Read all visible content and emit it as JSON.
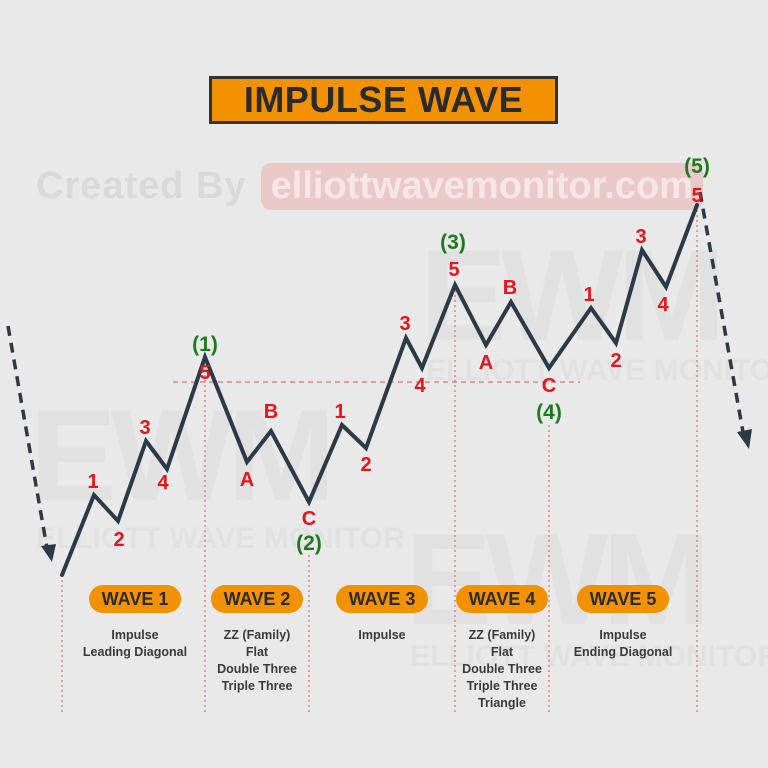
{
  "title": "IMPULSE WAVE",
  "watermark": {
    "credit_prefix": "Created By",
    "credit_site": "elliottwavemonitor.com",
    "logo_text": "EWM",
    "logo_sub": "ELLIOTT WAVE MONITOR"
  },
  "colors": {
    "accent": "#f39200",
    "wave_line": "#2b3a48",
    "sub_label": "#e8141c",
    "degree_label": "#1d7a1d",
    "guide": "#e05050"
  },
  "degree_labels": {
    "w1": "(1)",
    "w2": "(2)",
    "w3": "(3)",
    "w4": "(4)",
    "w5": "(5)"
  },
  "sub_labels": {
    "w1_1": "1",
    "w1_2": "2",
    "w1_3": "3",
    "w1_4": "4",
    "w1_5": "5",
    "w2_a": "A",
    "w2_b": "B",
    "w2_c": "C",
    "w3_1": "1",
    "w3_2": "2",
    "w3_3": "3",
    "w3_4": "4",
    "w3_5": "5",
    "w4_a": "A",
    "w4_b": "B",
    "w4_c": "C",
    "w5_1": "1",
    "w5_2": "2",
    "w5_3": "3",
    "w5_4": "4",
    "w5_5": "5"
  },
  "waves": [
    {
      "label": "WAVE 1",
      "lines": [
        "Impulse",
        "Leading Diagonal"
      ]
    },
    {
      "label": "WAVE 2",
      "lines": [
        "ZZ (Family)",
        "Flat",
        "Double Three",
        "Triple Three"
      ]
    },
    {
      "label": "WAVE 3",
      "lines": [
        "Impulse"
      ]
    },
    {
      "label": "WAVE 4",
      "lines": [
        "ZZ (Family)",
        "Flat",
        "Double Three",
        "Triple Three",
        "Triangle"
      ]
    },
    {
      "label": "WAVE 5",
      "lines": [
        "Impulse",
        "Ending Diagonal"
      ]
    }
  ]
}
